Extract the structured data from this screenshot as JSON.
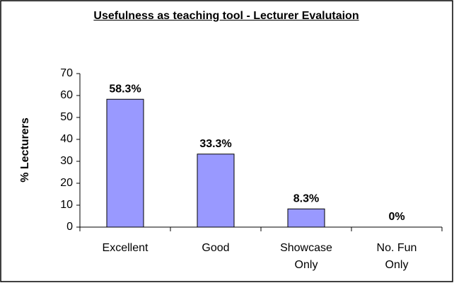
{
  "chart_data": {
    "type": "bar",
    "title": "Usefulness as teaching tool - Lecturer Evalutaion",
    "y_label": "% Lecturers",
    "categories": [
      "Excellent",
      "Good",
      "Showcase Only",
      "No. Fun Only"
    ],
    "values": [
      58.3,
      33.3,
      8.3,
      0
    ],
    "value_labels": [
      "58.3%",
      "33.3%",
      "8.3%",
      "0%"
    ],
    "color": "#9999ff",
    "ylim": [
      0,
      70
    ],
    "yticks": [
      0,
      10,
      20,
      30,
      40,
      50,
      60,
      70
    ],
    "grid": false
  }
}
